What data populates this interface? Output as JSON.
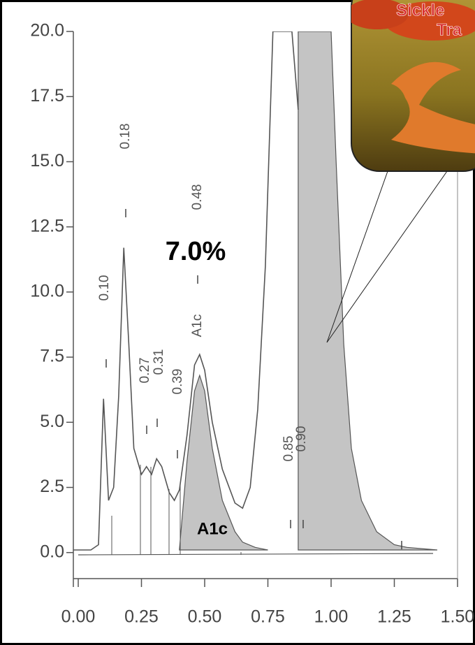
{
  "chart_data": {
    "type": "line",
    "xlim": [
      0,
      1.5
    ],
    "ylim": [
      -1,
      20
    ],
    "xticks": [
      {
        "value": 0,
        "label": "0.00"
      },
      {
        "value": 0.25,
        "label": "0.25"
      },
      {
        "value": 0.5,
        "label": "0.50"
      },
      {
        "value": 0.75,
        "label": "0.75"
      },
      {
        "value": 1,
        "label": "1.00"
      },
      {
        "value": 1.25,
        "label": "1.25"
      },
      {
        "value": 1.5,
        "label": "1.50"
      }
    ],
    "yticks": [
      {
        "value": 0,
        "label": "0.0"
      },
      {
        "value": 2.5,
        "label": "2.5"
      },
      {
        "value": 5,
        "label": "5.0"
      },
      {
        "value": 7.5,
        "label": "7.5"
      },
      {
        "value": 10,
        "label": "10.0"
      },
      {
        "value": 12.5,
        "label": "12.5"
      },
      {
        "value": 15,
        "label": "15.0"
      },
      {
        "value": 17.5,
        "label": "17.5"
      },
      {
        "value": 20,
        "label": "20.0"
      }
    ],
    "series": [
      {
        "color": "#555555",
        "fill": "#c4c4c4",
        "x": [
          0.4,
          0.43,
          0.46,
          0.48,
          0.5,
          0.53,
          0.57,
          0.62,
          0.65,
          0.7,
          0.75
        ],
        "values": [
          0.1,
          3.5,
          6.2,
          6.8,
          6.2,
          4.0,
          2.0,
          0.8,
          0.4,
          0.2,
          0.1
        ]
      },
      {
        "color": "#555555",
        "fill": "#c4c4c4",
        "x": [
          0.87,
          0.87,
          1.0,
          1.02,
          1.05,
          1.08,
          1.12,
          1.18,
          1.25,
          1.3,
          1.42
        ],
        "values": [
          0.1,
          20,
          20,
          15,
          8,
          4,
          2,
          0.8,
          0.3,
          0.2,
          0.1
        ]
      },
      {
        "color": "#555555",
        "x": [
          -0.02,
          0.05,
          0.08,
          0.1,
          0.12,
          0.14,
          0.16,
          0.18,
          0.2,
          0.22,
          0.25,
          0.27,
          0.29,
          0.31,
          0.33,
          0.36,
          0.38,
          0.4,
          0.43,
          0.46,
          0.48,
          0.5,
          0.53,
          0.57,
          0.62,
          0.65,
          0.68,
          0.71,
          0.74,
          0.76,
          0.77,
          0.845,
          0.87
        ],
        "values": [
          0.1,
          0.1,
          0.3,
          5.9,
          2.0,
          2.5,
          6.0,
          11.7,
          8.0,
          4.0,
          3.0,
          3.3,
          3.0,
          3.6,
          3.3,
          2.3,
          2.0,
          2.4,
          4.5,
          7.2,
          7.6,
          7.0,
          5.0,
          3.2,
          1.9,
          1.7,
          2.5,
          5.5,
          11.0,
          17.0,
          20.0,
          20.0,
          17.0
        ]
      }
    ],
    "peak_labels": [
      "0.10",
      "0.18",
      "0.27",
      "0.31",
      "0.39",
      "A1c",
      "0.48",
      "0.85",
      "0.90"
    ],
    "annotations": [
      "7.0%",
      "A1c"
    ],
    "inset_text": [
      "Sickle",
      "Tra"
    ]
  }
}
